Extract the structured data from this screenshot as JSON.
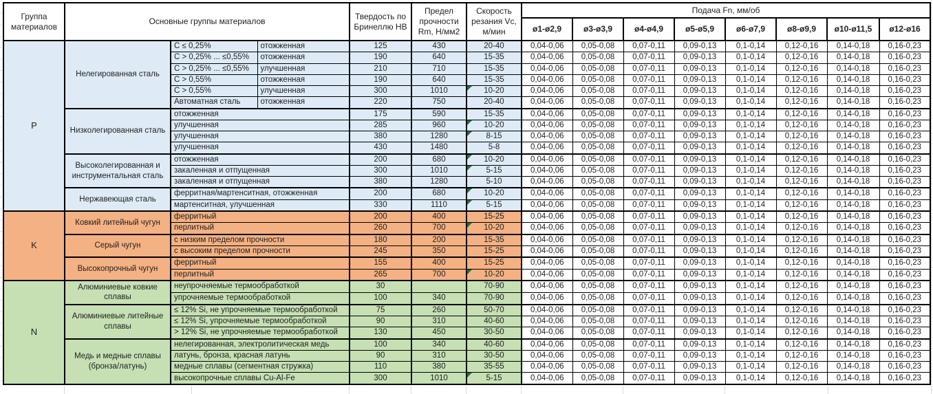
{
  "header": {
    "col_group": "Группа материалов",
    "col_materials": "Основные группы материалов",
    "col_hardness": "Твердость по Бринеллю HB",
    "col_strength": "Предел прочности Rm, Н/мм2",
    "col_speed": "Скорость резания Vc, м/мин",
    "feed_title": "Подача Fn, мм/об",
    "diameters": [
      "ø1-ø2,9",
      "ø3-ø3,9",
      "ø4-ø4,9",
      "ø5-ø5,9",
      "ø6-ø7,9",
      "ø8-ø9,9",
      "ø10-ø11,5",
      "ø12-ø16"
    ]
  },
  "feed_values": [
    "0,04-0,06",
    "0,05-0,08",
    "0,07-0,11",
    "0,09-0,13",
    "0,1-0,14",
    "0,12-0,16",
    "0,14-0,18",
    "0,16-0,23"
  ],
  "colors": {
    "group_p": "#DEEBF7",
    "group_k": "#F4B183",
    "group_n": "#C6E0B4",
    "note_triangle": "#1E7145",
    "border": "#000000"
  },
  "groups": [
    {
      "letter": "P",
      "color_key": "group_p",
      "blocks": [
        {
          "name": "Нелегированная сталь",
          "rows": [
            {
              "cols": [
                "C ≤ 0,25%",
                "отожженная"
              ],
              "hb": "125",
              "rm": "430",
              "vc": "20-40",
              "note": false
            },
            {
              "cols": [
                "C > 0,25% ... ≤0,55%",
                "отожженная"
              ],
              "hb": "190",
              "rm": "640",
              "vc": "15-35",
              "note": false
            },
            {
              "cols": [
                "C > 0,25% ... ≤0,55%",
                "улучшенная"
              ],
              "hb": "210",
              "rm": "710",
              "vc": "15-35",
              "note": false
            },
            {
              "cols": [
                "C > 0,55%",
                "отожженная"
              ],
              "hb": "190",
              "rm": "640",
              "vc": "15-35",
              "note": false
            },
            {
              "cols": [
                "C > 0,55%",
                "улучшенная"
              ],
              "hb": "300",
              "rm": "1010",
              "vc": "10-20",
              "note": true
            },
            {
              "cols": [
                "Автоматная сталь",
                "отожженная"
              ],
              "hb": "220",
              "rm": "750",
              "vc": "20-40",
              "note": false
            }
          ]
        },
        {
          "name": "Низколегированная сталь",
          "rows": [
            {
              "cols": [
                "отожженная"
              ],
              "hb": "175",
              "rm": "590",
              "vc": "15-35",
              "note": false
            },
            {
              "cols": [
                "улучшенная"
              ],
              "hb": "285",
              "rm": "960",
              "vc": "10-20",
              "note": true
            },
            {
              "cols": [
                "улучшенная"
              ],
              "hb": "380",
              "rm": "1280",
              "vc": "8-15",
              "note": true
            },
            {
              "cols": [
                "улучшенная"
              ],
              "hb": "430",
              "rm": "1480",
              "vc": "5-8",
              "note": false
            }
          ]
        },
        {
          "name": "Высоколегированная и инструментальная сталь",
          "rows": [
            {
              "cols": [
                "отожженная"
              ],
              "hb": "200",
              "rm": "680",
              "vc": "10-20",
              "note": true
            },
            {
              "cols": [
                "закаленная и отпущенная"
              ],
              "hb": "300",
              "rm": "1010",
              "vc": "5-15",
              "note": true
            },
            {
              "cols": [
                "закаленная и отпущенная"
              ],
              "hb": "380",
              "rm": "1280",
              "vc": "5-10",
              "note": false
            }
          ]
        },
        {
          "name": "Нержавеющая сталь",
          "rows": [
            {
              "cols": [
                "ферритная/мартенситная, отожженная"
              ],
              "hb": "200",
              "rm": "680",
              "vc": "10-20",
              "note": true
            },
            {
              "cols": [
                "мартенситная, улучшенная"
              ],
              "hb": "330",
              "rm": "1110",
              "vc": "5-15",
              "note": true
            }
          ]
        }
      ]
    },
    {
      "letter": "K",
      "color_key": "group_k",
      "blocks": [
        {
          "name": "Ковкий литейный чугун",
          "rows": [
            {
              "cols": [
                "ферритный"
              ],
              "hb": "200",
              "rm": "400",
              "vc": "15-25",
              "note": false
            },
            {
              "cols": [
                "перлитный"
              ],
              "hb": "260",
              "rm": "700",
              "vc": "10-20",
              "note": true
            }
          ]
        },
        {
          "name": "Серый чугун",
          "rows": [
            {
              "cols": [
                "с низким пределом прочности"
              ],
              "hb": "180",
              "rm": "200",
              "vc": "15-35",
              "note": false
            },
            {
              "cols": [
                "с высоким пределом прочности"
              ],
              "hb": "245",
              "rm": "350",
              "vc": "15-25",
              "note": false
            }
          ]
        },
        {
          "name": "Высокопрочный чугун",
          "rows": [
            {
              "cols": [
                "ферритный"
              ],
              "hb": "155",
              "rm": "400",
              "vc": "15-25",
              "note": false
            },
            {
              "cols": [
                "перлитный"
              ],
              "hb": "265",
              "rm": "700",
              "vc": "10-20",
              "note": true
            }
          ]
        }
      ]
    },
    {
      "letter": "N",
      "color_key": "group_n",
      "blocks": [
        {
          "name": "Алюминиевые ковкие сплавы",
          "rows": [
            {
              "cols": [
                "неупрочняемые термообработкой"
              ],
              "hb": "30",
              "rm": "",
              "vc": "70-90",
              "note": false
            },
            {
              "cols": [
                "упрочняемые термообработкой"
              ],
              "hb": "100",
              "rm": "340",
              "vc": "70-90",
              "note": false
            }
          ]
        },
        {
          "name": "Алюминиевые литейные сплавы",
          "rows": [
            {
              "cols": [
                "≤ 12% Si, не упрочняемые термообработкой"
              ],
              "hb": "75",
              "rm": "260",
              "vc": "50-70",
              "note": false
            },
            {
              "cols": [
                "≤ 12% Si, упрочняемые термообработкой"
              ],
              "hb": "90",
              "rm": "310",
              "vc": "40-60",
              "note": false
            },
            {
              "cols": [
                "> 12% Si, не упрочняемые термообработкой"
              ],
              "hb": "130",
              "rm": "450",
              "vc": "30-50",
              "note": false
            }
          ]
        },
        {
          "name": "Медь и медные сплавы (бронза/латунь)",
          "rows": [
            {
              "cols": [
                "нелегированная, электролитическая медь"
              ],
              "hb": "100",
              "rm": "340",
              "vc": "40-60",
              "note": false
            },
            {
              "cols": [
                "латунь, бронза, красная латунь"
              ],
              "hb": "90",
              "rm": "310",
              "vc": "30-50",
              "note": false
            },
            {
              "cols": [
                "медные сплавы (сегментная стружка)"
              ],
              "hb": "110",
              "rm": "380",
              "vc": "35-55",
              "note": false
            },
            {
              "cols": [
                "высокопрочные сплавы Cu-Al-Fe"
              ],
              "hb": "300",
              "rm": "1010",
              "vc": "5-15",
              "note": true
            }
          ]
        }
      ]
    }
  ]
}
